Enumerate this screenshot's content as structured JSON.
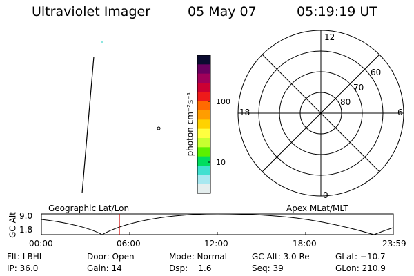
{
  "header": {
    "instrument": "Ultraviolet Imager",
    "date": "05 May 07",
    "time": "05:19:19 UT"
  },
  "colorbar": {
    "unit_label": "photon cm⁻²s⁻¹",
    "tick_100": "100",
    "tick_10": "10",
    "colors": [
      "#0b0b30",
      "#6a0060",
      "#a0005a",
      "#cc0033",
      "#ee1a1a",
      "#ff6a00",
      "#ff9d00",
      "#ffd200",
      "#ffff40",
      "#c8ff30",
      "#5cf000",
      "#00dd60",
      "#40e0d0",
      "#a8e8f0",
      "#e4eeee"
    ]
  },
  "polar": {
    "mlt_12": "12",
    "mlt_18": "18",
    "mlt_6": "6",
    "mlt_0": "0",
    "lat_60": "60",
    "lat_70": "70",
    "lat_80": "80"
  },
  "orbit": {
    "left_label": "Geographic Lat/Lon",
    "right_label": "Apex MLat/MLT",
    "axis_title": "GC Alt",
    "y_max": "9.0",
    "y_min": "1.8",
    "x_ticks": [
      "00:00",
      "06:00",
      "12:00",
      "18:00",
      "23:59"
    ],
    "marker_color": "#cc0000"
  },
  "info": {
    "flt": "Flt: LBHL",
    "ip": "IP: 36.0",
    "door": "Door: Open",
    "gain": "Gain: 14",
    "mode": "Mode: Normal",
    "dsp": "Dsp:    1.6",
    "gcalt": "GC Alt: 3.0 Re",
    "seq": "Seq: 39",
    "glat": "GLat: −10.7",
    "glon": "GLon: 210.9"
  }
}
